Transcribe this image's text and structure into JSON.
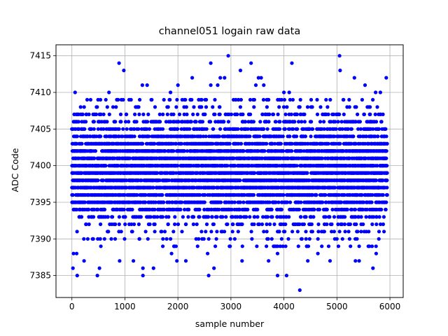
{
  "chart_data": {
    "type": "scatter",
    "title": "channel051 logain raw data",
    "xlabel": "sample number",
    "ylabel": "ADC Code",
    "xlim": [
      -300,
      6250
    ],
    "ylim": [
      7382,
      7416.5
    ],
    "xticks": [
      0,
      1000,
      2000,
      3000,
      4000,
      5000,
      6000
    ],
    "yticks": [
      7385,
      7390,
      7395,
      7400,
      7405,
      7410,
      7415
    ],
    "grid": true,
    "marker_color": "#0000ff",
    "series": [
      {
        "sample_count": 5950,
        "x_range": [
          0,
          5950
        ],
        "y_center": 7399.5,
        "y_min": 7383,
        "y_max": 7415,
        "points": [
          {
            "x": 2950,
            "y": 7415
          },
          {
            "x": 5050,
            "y": 7415
          },
          {
            "x": 890,
            "y": 7414
          },
          {
            "x": 2620,
            "y": 7414
          },
          {
            "x": 3380,
            "y": 7414
          },
          {
            "x": 4150,
            "y": 7414
          },
          {
            "x": 980,
            "y": 7413
          },
          {
            "x": 3180,
            "y": 7413
          },
          {
            "x": 5060,
            "y": 7413
          },
          {
            "x": 2270,
            "y": 7412
          },
          {
            "x": 2800,
            "y": 7412
          },
          {
            "x": 2880,
            "y": 7412
          },
          {
            "x": 3520,
            "y": 7412
          },
          {
            "x": 3570,
            "y": 7412
          },
          {
            "x": 5330,
            "y": 7412
          },
          {
            "x": 5930,
            "y": 7412
          },
          {
            "x": 1330,
            "y": 7411
          },
          {
            "x": 1420,
            "y": 7411
          },
          {
            "x": 2000,
            "y": 7411
          },
          {
            "x": 2620,
            "y": 7411
          },
          {
            "x": 2750,
            "y": 7411
          },
          {
            "x": 3470,
            "y": 7411
          },
          {
            "x": 3620,
            "y": 7411
          },
          {
            "x": 5530,
            "y": 7411
          },
          {
            "x": 60,
            "y": 7410
          },
          {
            "x": 700,
            "y": 7410
          },
          {
            "x": 1860,
            "y": 7410
          },
          {
            "x": 4000,
            "y": 7410
          },
          {
            "x": 4100,
            "y": 7410
          },
          {
            "x": 5730,
            "y": 7410
          },
          {
            "x": 5820,
            "y": 7410
          },
          {
            "x": 30,
            "y": 7388
          },
          {
            "x": 90,
            "y": 7388
          },
          {
            "x": 1880,
            "y": 7388
          },
          {
            "x": 2560,
            "y": 7388
          },
          {
            "x": 3880,
            "y": 7388
          },
          {
            "x": 4640,
            "y": 7388
          },
          {
            "x": 5740,
            "y": 7388
          },
          {
            "x": 230,
            "y": 7387
          },
          {
            "x": 900,
            "y": 7387
          },
          {
            "x": 1160,
            "y": 7387
          },
          {
            "x": 1980,
            "y": 7387
          },
          {
            "x": 2150,
            "y": 7387
          },
          {
            "x": 3210,
            "y": 7387
          },
          {
            "x": 3710,
            "y": 7387
          },
          {
            "x": 4450,
            "y": 7387
          },
          {
            "x": 4870,
            "y": 7387
          },
          {
            "x": 5350,
            "y": 7387
          },
          {
            "x": 5420,
            "y": 7387
          },
          {
            "x": 20,
            "y": 7386
          },
          {
            "x": 520,
            "y": 7386
          },
          {
            "x": 1340,
            "y": 7386
          },
          {
            "x": 1540,
            "y": 7386
          },
          {
            "x": 2680,
            "y": 7386
          },
          {
            "x": 5680,
            "y": 7386
          },
          {
            "x": 100,
            "y": 7385
          },
          {
            "x": 480,
            "y": 7385
          },
          {
            "x": 1340,
            "y": 7385
          },
          {
            "x": 2580,
            "y": 7385
          },
          {
            "x": 3880,
            "y": 7385
          },
          {
            "x": 4050,
            "y": 7385
          },
          {
            "x": 4300,
            "y": 7383
          }
        ]
      }
    ]
  }
}
